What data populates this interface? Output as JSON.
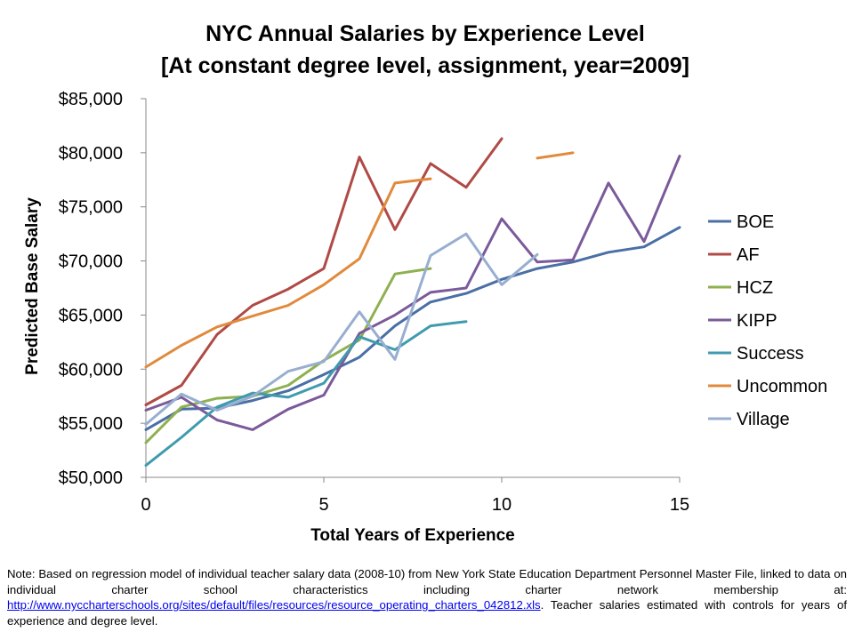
{
  "chart_data": {
    "type": "line",
    "title": "NYC Annual Salaries by Experience Level",
    "subtitle": "[At constant degree level, assignment, year=2009]",
    "xlabel": "Total Years of Experience",
    "ylabel": "Predicted Base Salary",
    "xlim": [
      0,
      15
    ],
    "ylim": [
      50000,
      85000
    ],
    "x_ticks": [
      "0",
      "5",
      "10",
      "15"
    ],
    "y_ticks": [
      "$50,000",
      "$55,000",
      "$60,000",
      "$65,000",
      "$70,000",
      "$75,000",
      "$80,000",
      "$85,000"
    ],
    "grid": false,
    "legend_position": "right",
    "series": [
      {
        "name": "BOE",
        "color": "#4a6fa5",
        "points": [
          [
            0,
            54400
          ],
          [
            1,
            56300
          ],
          [
            2,
            56400
          ],
          [
            3,
            57100
          ],
          [
            4,
            58000
          ],
          [
            5,
            59500
          ],
          [
            6,
            61100
          ],
          [
            7,
            64000
          ],
          [
            8,
            66200
          ],
          [
            9,
            67000
          ],
          [
            10,
            68300
          ],
          [
            11,
            69300
          ],
          [
            12,
            69900
          ],
          [
            13,
            70800
          ],
          [
            14,
            71300
          ],
          [
            15,
            73100
          ]
        ]
      },
      {
        "name": "AF",
        "color": "#b04a46",
        "segments": [
          [
            [
              0,
              56700
            ],
            [
              1,
              58500
            ],
            [
              2,
              63200
            ],
            [
              3,
              65900
            ],
            [
              4,
              67400
            ],
            [
              5,
              69300
            ],
            [
              6,
              79600
            ],
            [
              7,
              72900
            ],
            [
              8,
              79000
            ],
            [
              9,
              76800
            ],
            [
              10,
              81300
            ]
          ]
        ]
      },
      {
        "name": "HCZ",
        "color": "#8fb050",
        "points": [
          [
            0,
            53200
          ],
          [
            1,
            56500
          ],
          [
            2,
            57300
          ],
          [
            3,
            57500
          ],
          [
            4,
            58500
          ],
          [
            5,
            60800
          ],
          [
            6,
            62700
          ],
          [
            7,
            68800
          ],
          [
            8,
            69300
          ]
        ]
      },
      {
        "name": "KIPP",
        "color": "#7b5a9a",
        "points": [
          [
            0,
            56200
          ],
          [
            1,
            57400
          ],
          [
            2,
            55300
          ],
          [
            3,
            54400
          ],
          [
            4,
            56300
          ],
          [
            5,
            57600
          ],
          [
            6,
            63300
          ],
          [
            7,
            65000
          ],
          [
            8,
            67100
          ],
          [
            9,
            67500
          ],
          [
            10,
            73900
          ],
          [
            11,
            69900
          ],
          [
            12,
            70100
          ],
          [
            13,
            77200
          ],
          [
            14,
            71800
          ],
          [
            15,
            79700
          ]
        ]
      },
      {
        "name": "Success",
        "color": "#3f9bad",
        "points": [
          [
            0,
            51100
          ],
          [
            1,
            53700
          ],
          [
            2,
            56500
          ],
          [
            3,
            57800
          ],
          [
            4,
            57400
          ],
          [
            5,
            58700
          ],
          [
            6,
            63000
          ],
          [
            7,
            61800
          ],
          [
            8,
            64000
          ],
          [
            9,
            64400
          ]
        ]
      },
      {
        "name": "Uncommon",
        "color": "#e08a3c",
        "segments": [
          [
            [
              0,
              60200
            ],
            [
              1,
              62200
            ],
            [
              2,
              63900
            ],
            [
              3,
              64900
            ],
            [
              4,
              65900
            ],
            [
              5,
              67800
            ],
            [
              6,
              70200
            ],
            [
              7,
              77200
            ],
            [
              8,
              77600
            ]
          ],
          [
            [
              11,
              79500
            ],
            [
              12,
              80000
            ]
          ]
        ]
      },
      {
        "name": "Village",
        "color": "#98aed0",
        "points": [
          [
            0,
            54900
          ],
          [
            1,
            57700
          ],
          [
            2,
            56200
          ],
          [
            3,
            57500
          ],
          [
            4,
            59800
          ],
          [
            5,
            60700
          ],
          [
            6,
            65300
          ],
          [
            7,
            60900
          ],
          [
            8,
            70500
          ],
          [
            9,
            72500
          ],
          [
            10,
            67800
          ],
          [
            11,
            70600
          ]
        ]
      }
    ]
  },
  "note": {
    "text_before": "Note: Based on regression model of individual teacher salary data (2008-10) from New York State Education Department Personnel Master File, linked to data on individual charter school characteristics including charter network membership at: ",
    "link_text": "http://www.nyccharterschools.org/sites/default/files/resources/resource_operating_charters_042812.xls",
    "text_after": ". Teacher salaries estimated with controls for years of experience and degree level."
  }
}
